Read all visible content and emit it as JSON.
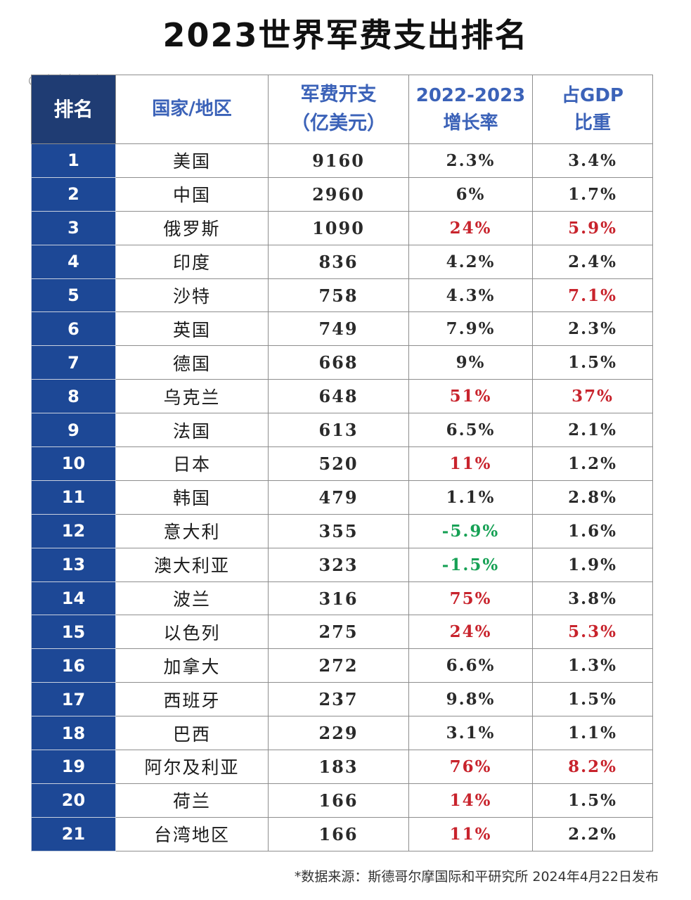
{
  "title": "2023世界军费支出排名",
  "watermark": "@ 大唐龙标尉",
  "colors": {
    "header_rank_bg": "#1f3c73",
    "rank_col_bg": "#1d4896",
    "header_text": "#3b62b8",
    "increase_red": "#c8232c",
    "decrease_green": "#17a155"
  },
  "headers": {
    "rank": "排名",
    "country": "国家/地区",
    "spend_line1": "军费开支",
    "spend_line2": "（亿美元）",
    "growth_line1": "2022-2023",
    "growth_line2": "增长率",
    "gdp_line1": "占GDP",
    "gdp_line2": "比重"
  },
  "rows": [
    {
      "rank": "1",
      "country": "美国",
      "spend": "9160",
      "growth": "2.3%",
      "gdp": "3.4%",
      "growth_color": "normal",
      "gdp_color": "normal"
    },
    {
      "rank": "2",
      "country": "中国",
      "spend": "2960",
      "growth": "6%",
      "gdp": "1.7%",
      "growth_color": "normal",
      "gdp_color": "normal"
    },
    {
      "rank": "3",
      "country": "俄罗斯",
      "spend": "1090",
      "growth": "24%",
      "gdp": "5.9%",
      "growth_color": "red",
      "gdp_color": "red"
    },
    {
      "rank": "4",
      "country": "印度",
      "spend": "836",
      "growth": "4.2%",
      "gdp": "2.4%",
      "growth_color": "normal",
      "gdp_color": "normal"
    },
    {
      "rank": "5",
      "country": "沙特",
      "spend": "758",
      "growth": "4.3%",
      "gdp": "7.1%",
      "growth_color": "normal",
      "gdp_color": "red"
    },
    {
      "rank": "6",
      "country": "英国",
      "spend": "749",
      "growth": "7.9%",
      "gdp": "2.3%",
      "growth_color": "normal",
      "gdp_color": "normal"
    },
    {
      "rank": "7",
      "country": "德国",
      "spend": "668",
      "growth": "9%",
      "gdp": "1.5%",
      "growth_color": "normal",
      "gdp_color": "normal"
    },
    {
      "rank": "8",
      "country": "乌克兰",
      "spend": "648",
      "growth": "51%",
      "gdp": "37%",
      "growth_color": "red",
      "gdp_color": "red"
    },
    {
      "rank": "9",
      "country": "法国",
      "spend": "613",
      "growth": "6.5%",
      "gdp": "2.1%",
      "growth_color": "normal",
      "gdp_color": "normal"
    },
    {
      "rank": "10",
      "country": "日本",
      "spend": "520",
      "growth": "11%",
      "gdp": "1.2%",
      "growth_color": "red",
      "gdp_color": "normal"
    },
    {
      "rank": "11",
      "country": "韩国",
      "spend": "479",
      "growth": "1.1%",
      "gdp": "2.8%",
      "growth_color": "normal",
      "gdp_color": "normal"
    },
    {
      "rank": "12",
      "country": "意大利",
      "spend": "355",
      "growth": "-5.9%",
      "gdp": "1.6%",
      "growth_color": "green",
      "gdp_color": "normal"
    },
    {
      "rank": "13",
      "country": "澳大利亚",
      "spend": "323",
      "growth": "-1.5%",
      "gdp": "1.9%",
      "growth_color": "green",
      "gdp_color": "normal"
    },
    {
      "rank": "14",
      "country": "波兰",
      "spend": "316",
      "growth": "75%",
      "gdp": "3.8%",
      "growth_color": "red",
      "gdp_color": "normal"
    },
    {
      "rank": "15",
      "country": "以色列",
      "spend": "275",
      "growth": "24%",
      "gdp": "5.3%",
      "growth_color": "red",
      "gdp_color": "red"
    },
    {
      "rank": "16",
      "country": "加拿大",
      "spend": "272",
      "growth": "6.6%",
      "gdp": "1.3%",
      "growth_color": "normal",
      "gdp_color": "normal"
    },
    {
      "rank": "17",
      "country": "西班牙",
      "spend": "237",
      "growth": "9.8%",
      "gdp": "1.5%",
      "growth_color": "normal",
      "gdp_color": "normal"
    },
    {
      "rank": "18",
      "country": "巴西",
      "spend": "229",
      "growth": "3.1%",
      "gdp": "1.1%",
      "growth_color": "normal",
      "gdp_color": "normal"
    },
    {
      "rank": "19",
      "country": "阿尔及利亚",
      "spend": "183",
      "growth": "76%",
      "gdp": "8.2%",
      "growth_color": "red",
      "gdp_color": "red"
    },
    {
      "rank": "20",
      "country": "荷兰",
      "spend": "166",
      "growth": "14%",
      "gdp": "1.5%",
      "growth_color": "red",
      "gdp_color": "normal"
    },
    {
      "rank": "21",
      "country": "台湾地区",
      "spend": "166",
      "growth": "11%",
      "gdp": "2.2%",
      "growth_color": "red",
      "gdp_color": "normal"
    }
  ],
  "source": "*数据来源：斯德哥尔摩国际和平研究所 2024年4月22日发布"
}
